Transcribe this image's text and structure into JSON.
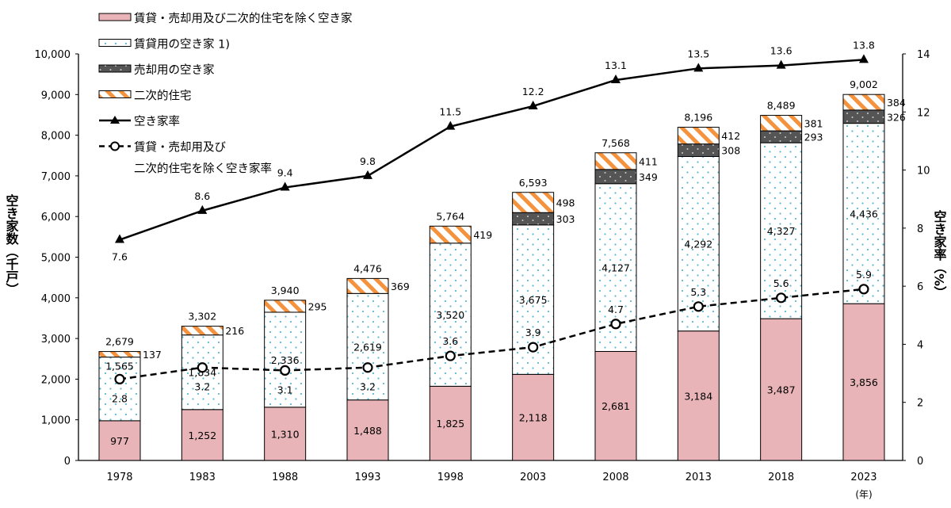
{
  "chart_data": {
    "type": "bar",
    "stacked": true,
    "categories": [
      "1978",
      "1983",
      "1988",
      "1993",
      "1998",
      "2003",
      "2008",
      "2013",
      "2018",
      "2023"
    ],
    "x_unit_label": "(年)",
    "ylabel": "空き家数（千戸）",
    "ylabel_right": "空き家率（%）",
    "ylim": [
      0,
      10000
    ],
    "ylim_right": [
      0,
      14
    ],
    "yticks": [
      0,
      1000,
      2000,
      3000,
      4000,
      5000,
      6000,
      7000,
      8000,
      9000,
      10000
    ],
    "yticks_right": [
      0,
      2,
      4,
      6,
      8,
      10,
      12,
      14
    ],
    "grid": false,
    "legend_position": "top-left",
    "series": [
      {
        "name": "賃貸・売却用及び二次的住宅を除く空き家",
        "kind": "bar",
        "color": "#e8b4b8",
        "values": [
          977,
          1252,
          1310,
          1488,
          1825,
          2118,
          2681,
          3184,
          3487,
          3856
        ]
      },
      {
        "name": "賃貸用の空き家 1)",
        "kind": "bar",
        "color": "#ffffff",
        "dot_color": "#5bb8d4",
        "values": [
          1565,
          1834,
          2336,
          2619,
          3520,
          3675,
          4127,
          4292,
          4327,
          4436
        ]
      },
      {
        "name": "売却用の空き家",
        "kind": "bar",
        "color": "#555555",
        "values": [
          null,
          null,
          null,
          null,
          null,
          303,
          349,
          308,
          293,
          326
        ]
      },
      {
        "name": "二次的住宅",
        "kind": "bar",
        "color": "#f5923e",
        "values": [
          137,
          216,
          295,
          369,
          419,
          498,
          411,
          412,
          381,
          384
        ]
      },
      {
        "name": "空き家率",
        "kind": "line",
        "axis": "right",
        "marker": "triangle",
        "values": [
          7.6,
          8.6,
          9.4,
          9.8,
          11.5,
          12.2,
          13.1,
          13.5,
          13.6,
          13.8
        ]
      },
      {
        "name": "賃貸・売却用及び\n二次的住宅を除く空き家率",
        "kind": "line",
        "axis": "right",
        "marker": "circle",
        "dashed": true,
        "values": [
          2.8,
          3.2,
          3.1,
          3.2,
          3.6,
          3.9,
          4.7,
          5.3,
          5.6,
          5.9
        ]
      }
    ],
    "totals": [
      2679,
      3302,
      3940,
      4476,
      5764,
      6593,
      7568,
      8196,
      8489,
      9002
    ]
  }
}
